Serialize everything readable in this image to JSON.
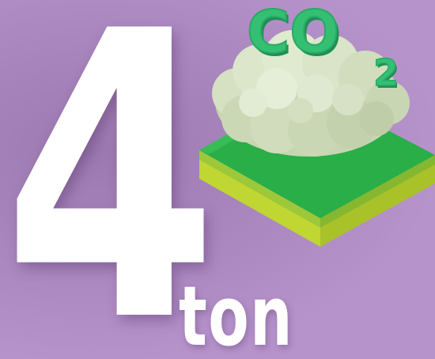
{
  "figure": {
    "number": "4",
    "unit": "ton"
  },
  "illustration": {
    "icon": "co2-cloud-over-grass-tile-icon",
    "label_main": "CO",
    "label_sub": "2",
    "colors": {
      "background": "#b793cc",
      "text": "#ffffff",
      "co2_text": "#2fb56a",
      "cloud": "#d7e3c6",
      "grass_top": "#2bb04a",
      "soil_side": "#c4d93a"
    }
  }
}
